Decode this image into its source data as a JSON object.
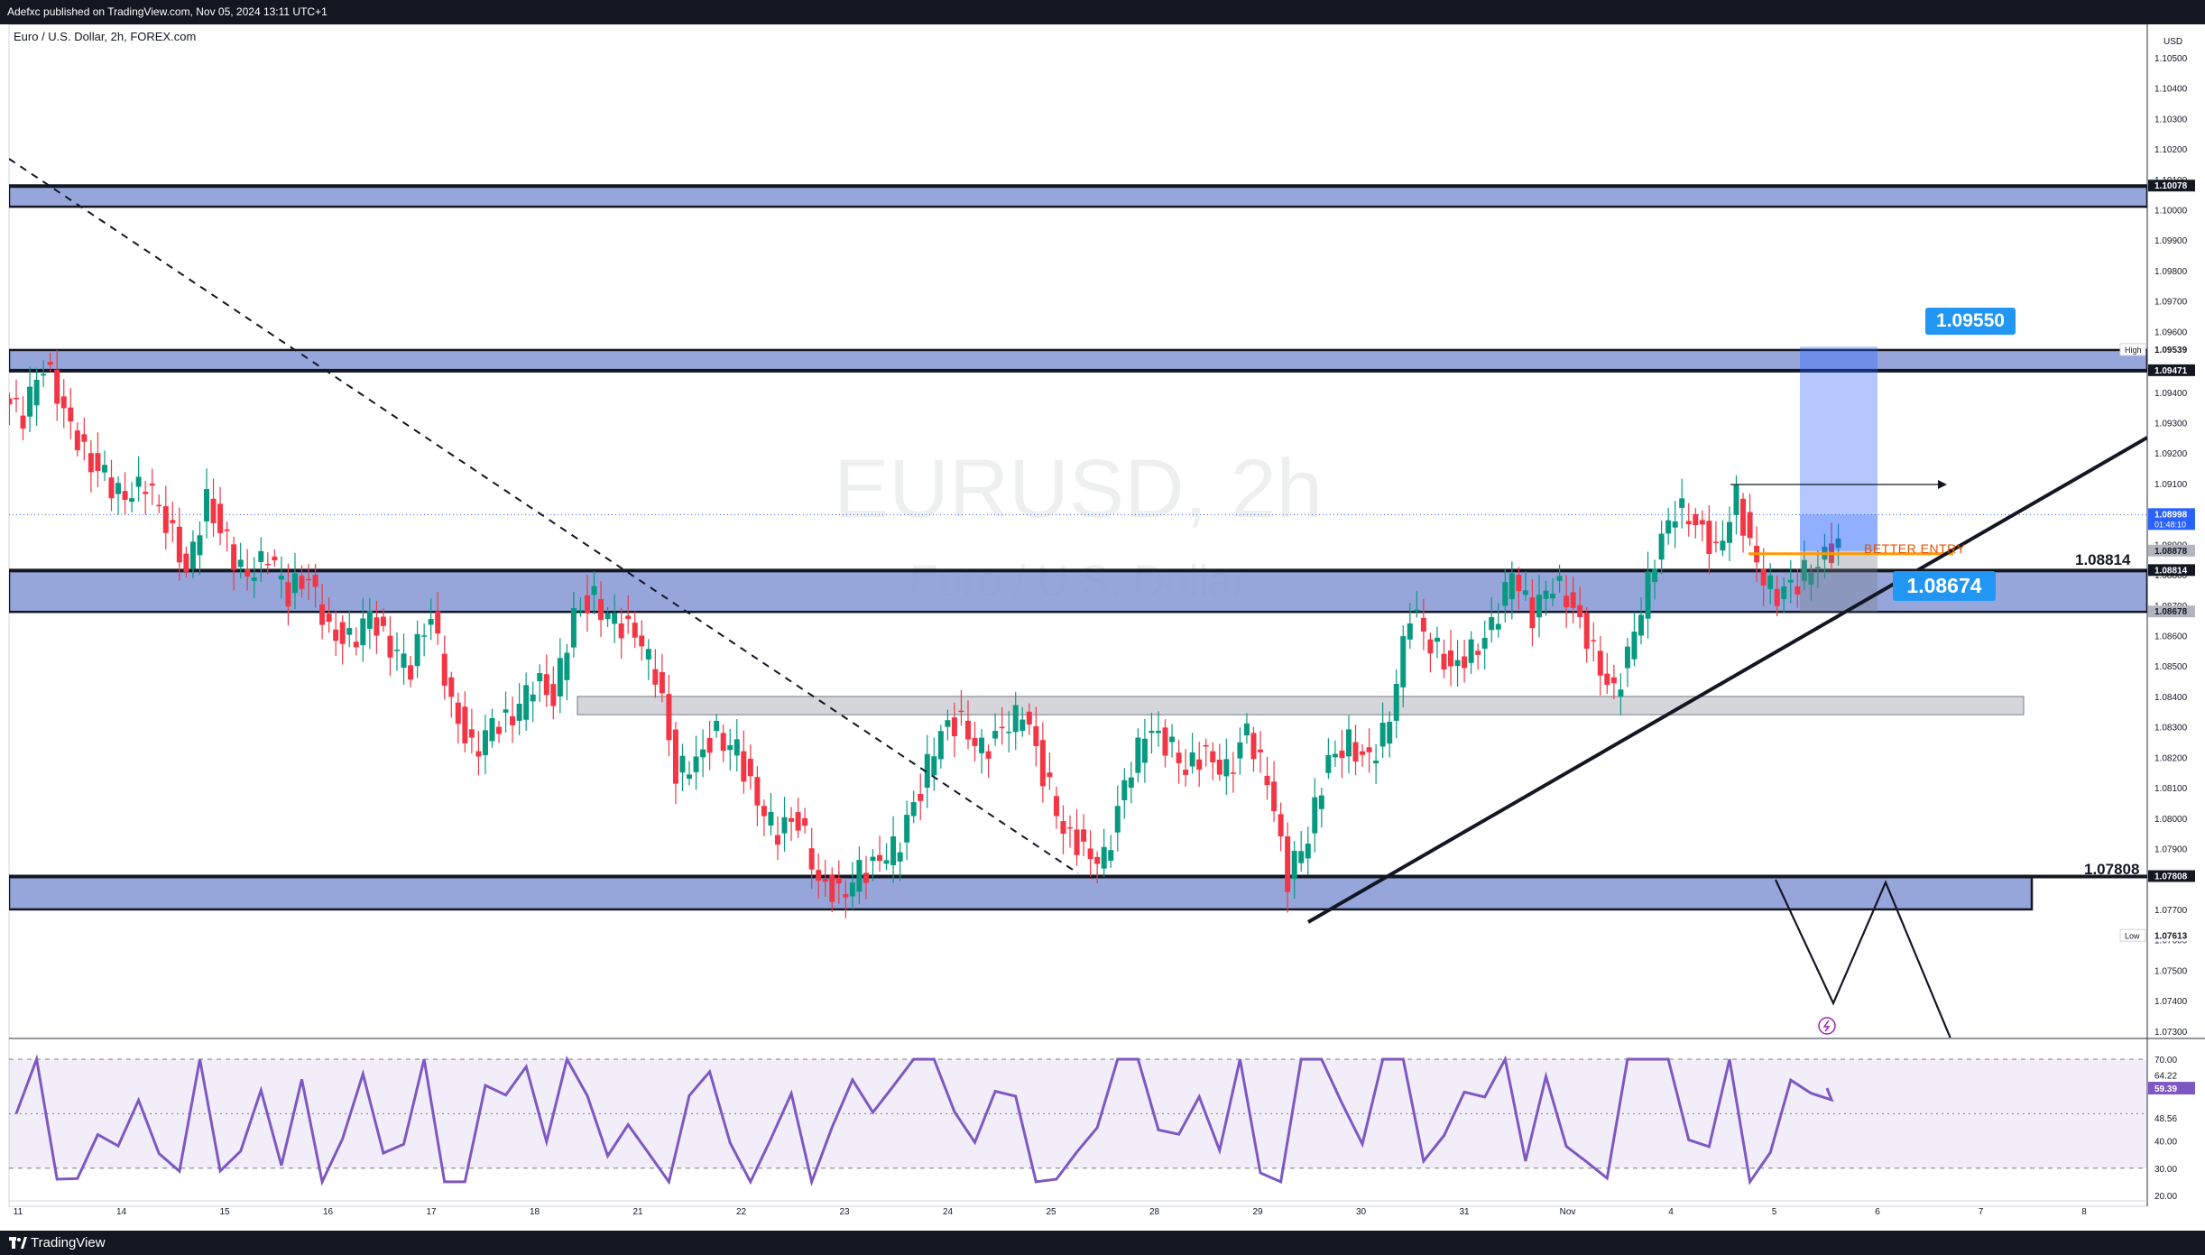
{
  "header": {
    "published_by": "Adefxc published on TradingView.com, Nov 05, 2024 13:11 UTC+1",
    "symbol_description": "Euro / U.S. Dollar, 2h, FOREX.com"
  },
  "watermark": {
    "symbol": "EURUSD, 2h",
    "description": "Euro / U.S. Dollar"
  },
  "footer": {
    "brand": "TradingView"
  },
  "price_axis": {
    "currency": "USD",
    "ticks": [
      "1.10500",
      "1.10400",
      "1.10300",
      "1.10200",
      "1.10100",
      "1.10000",
      "1.09900",
      "1.09800",
      "1.09700",
      "1.09600",
      "1.09400",
      "1.09300",
      "1.09200",
      "1.09100",
      "1.08900",
      "1.08800",
      "1.08700",
      "1.08600",
      "1.08500",
      "1.08400",
      "1.08300",
      "1.08200",
      "1.08100",
      "1.08000",
      "1.07900",
      "1.07700",
      "1.07600",
      "1.07500",
      "1.07400",
      "1.07300"
    ],
    "badges": [
      {
        "text": "1.10078",
        "price": 1.10078,
        "style": "dark"
      },
      {
        "text": "1.09539",
        "price": 1.09539,
        "style": "plain",
        "tag": "High"
      },
      {
        "text": "1.09471",
        "price": 1.09471,
        "style": "dark"
      },
      {
        "text": "1.08998",
        "price": 1.08998,
        "style": "blue",
        "sub": "01:48:10"
      },
      {
        "text": "1.08878",
        "price": 1.08878,
        "style": "grey"
      },
      {
        "text": "1.08814",
        "price": 1.08814,
        "style": "dark"
      },
      {
        "text": "1.08678",
        "price": 1.08678,
        "style": "grey"
      },
      {
        "text": "1.07808",
        "price": 1.07808,
        "style": "dark"
      },
      {
        "text": "1.07613",
        "price": 1.07613,
        "style": "plain",
        "tag": "Low"
      }
    ]
  },
  "time_axis": {
    "labels": [
      "11",
      "14",
      "15",
      "16",
      "17",
      "18",
      "21",
      "22",
      "23",
      "24",
      "25",
      "28",
      "29",
      "30",
      "31",
      "Nov",
      "4",
      "5",
      "6",
      "7",
      "8"
    ]
  },
  "annotations": {
    "target_label": "1.09550",
    "entry_label": "1.08674",
    "better_entry": "BETTER ENTRY",
    "level_1": "1.08814",
    "level_2": "1.07808"
  },
  "rsi_axis": {
    "ticks": [
      "70.00",
      "64.22",
      "48.56",
      "40.00",
      "30.00",
      "20.00"
    ],
    "current": "59.39"
  },
  "colors": {
    "bull": "#089981",
    "bear": "#f23645",
    "zone": "#8497d4",
    "rsi": "#7e57c2",
    "accent": "#2196f3"
  },
  "chart_data": {
    "type": "candlestick",
    "symbol": "EURUSD",
    "timeframe": "2h",
    "ylim": [
      1.073,
      1.1055
    ],
    "x_ticks": [
      "11",
      "14",
      "15",
      "16",
      "17",
      "18",
      "21",
      "22",
      "23",
      "24",
      "25",
      "28",
      "29",
      "30",
      "31",
      "Nov",
      "4",
      "5",
      "6",
      "7",
      "8"
    ],
    "candles_close_path": [
      1.0932,
      1.095,
      1.0935,
      1.092,
      1.0912,
      1.0904,
      1.091,
      1.0898,
      1.0882,
      1.0905,
      1.089,
      1.0878,
      1.0886,
      1.0874,
      1.088,
      1.0862,
      1.0858,
      1.0866,
      1.0855,
      1.085,
      1.0868,
      1.0838,
      1.0822,
      1.083,
      1.0832,
      1.0845,
      1.084,
      1.0868,
      1.0872,
      1.0864,
      1.086,
      1.0848,
      1.0815,
      1.082,
      1.0828,
      1.0822,
      1.0804,
      1.0795,
      1.08,
      1.078,
      1.0775,
      1.0782,
      1.0785,
      1.0792,
      1.081,
      1.083,
      1.0832,
      1.0822,
      1.0828,
      1.0835,
      1.0815,
      1.0797,
      1.079,
      1.0786,
      1.081,
      1.0828,
      1.0825,
      1.0817,
      1.0822,
      1.0815,
      1.0828,
      1.0812,
      1.078,
      1.0795,
      1.082,
      1.0825,
      1.0818,
      1.0832,
      1.0868,
      1.0858,
      1.085,
      1.0855,
      1.0862,
      1.088,
      1.0866,
      1.0878,
      1.087,
      1.0855,
      1.084,
      1.086,
      1.0885,
      1.0902,
      1.0898,
      1.0888,
      1.0905,
      1.0882,
      1.0872,
      1.0878,
      1.0885,
      1.089
    ],
    "horizontal_levels": [
      1.10078,
      1.09471,
      1.08814,
      1.07808
    ],
    "zones": [
      {
        "from": 1.1001,
        "to": 1.10078
      },
      {
        "from": 1.09471,
        "to": 1.09539
      },
      {
        "from": 1.08678,
        "to": 1.08814
      },
      {
        "from": 1.077,
        "to": 1.07808
      },
      {
        "from": 1.0834,
        "to": 1.084
      }
    ],
    "position": {
      "entry": 1.08878,
      "target": 1.0955,
      "stop": 1.08678
    },
    "rsi": {
      "current": 59.39,
      "levels": [
        70,
        30
      ],
      "ylim": [
        20,
        72
      ]
    }
  }
}
